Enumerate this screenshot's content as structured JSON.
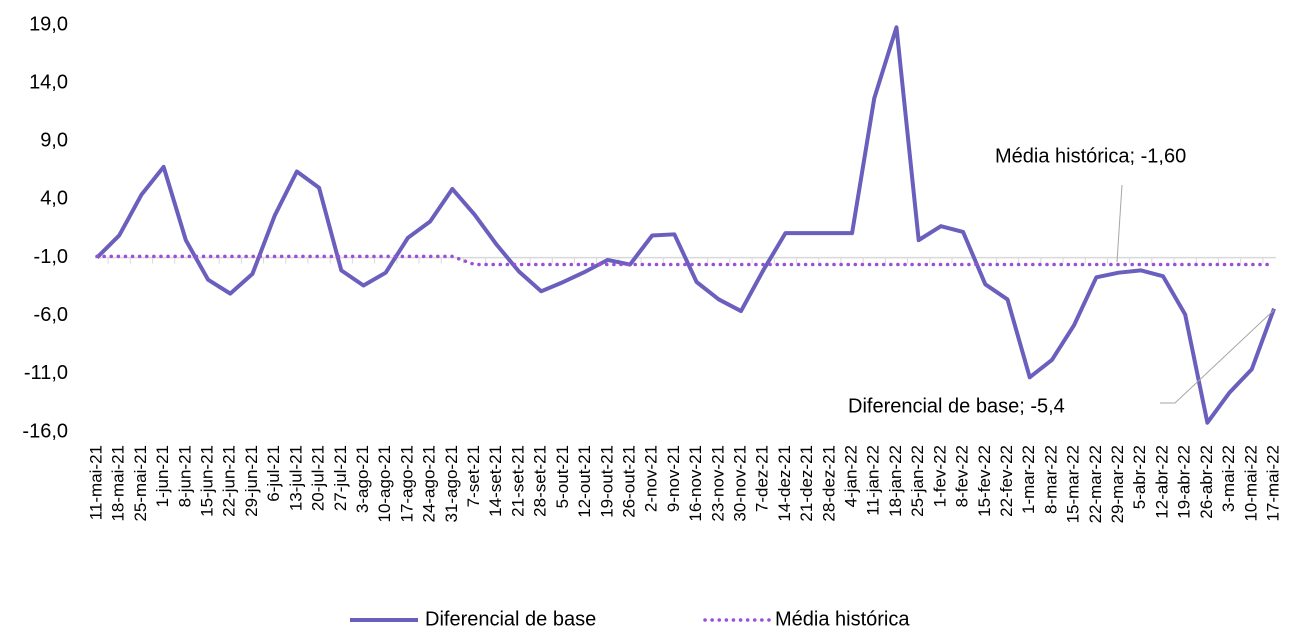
{
  "chart_data": {
    "type": "line",
    "categories": [
      "11-mai-21",
      "18-mai-21",
      "25-mai-21",
      "1-jun-21",
      "8-jun-21",
      "15-jun-21",
      "22-jun-21",
      "29-jun-21",
      "6-jul-21",
      "13-jul-21",
      "20-jul-21",
      "27-jul-21",
      "3-ago-21",
      "10-ago-21",
      "17-ago-21",
      "24-ago-21",
      "31-ago-21",
      "7-set-21",
      "14-set-21",
      "21-set-21",
      "28-set-21",
      "5-out-21",
      "12-out-21",
      "19-out-21",
      "26-out-21",
      "2-nov-21",
      "9-nov-21",
      "16-nov-21",
      "23-nov-21",
      "30-nov-21",
      "7-dez-21",
      "14-dez-21",
      "21-dez-21",
      "28-dez-21",
      "4-jan-22",
      "11-jan-22",
      "18-jan-22",
      "25-jan-22",
      "1-fev-22",
      "8-fev-22",
      "15-fev-22",
      "22-fev-22",
      "1-mar-22",
      "8-mar-22",
      "15-mar-22",
      "22-mar-22",
      "29-mar-22",
      "5-abr-22",
      "12-abr-22",
      "19-abr-22",
      "26-abr-22",
      "3-mai-22",
      "10-mai-22",
      "17-mai-22"
    ],
    "series": [
      {
        "name": "Diferencial de base",
        "color": "#6a5fbd",
        "dash": "solid",
        "values": [
          -1.0,
          0.9,
          4.4,
          6.8,
          0.5,
          -2.9,
          -4.1,
          -2.4,
          2.6,
          6.4,
          5.0,
          -2.1,
          -3.4,
          -2.3,
          0.7,
          2.1,
          4.9,
          2.7,
          0.1,
          -2.2,
          -3.9,
          -3.1,
          -2.2,
          -1.2,
          -1.6,
          0.9,
          1.0,
          -3.1,
          -4.6,
          -5.6,
          -2.1,
          1.1,
          1.1,
          1.1,
          1.1,
          12.7,
          18.8,
          0.5,
          1.7,
          1.2,
          -3.3,
          -4.6,
          -11.3,
          -9.8,
          -6.8,
          -2.7,
          -2.3,
          -2.1,
          -2.6,
          -5.9,
          -15.2,
          -12.6,
          -10.6,
          -5.4
        ]
      },
      {
        "name": "Média histórica",
        "color": "#9b4fd6",
        "dash": "dotted",
        "values": [
          -0.9,
          -0.9,
          -0.9,
          -0.9,
          -0.9,
          -0.9,
          -0.9,
          -0.9,
          -0.9,
          -0.9,
          -0.9,
          -0.9,
          -0.9,
          -0.9,
          -0.9,
          -0.9,
          -0.9,
          -1.6,
          -1.6,
          -1.6,
          -1.6,
          -1.6,
          -1.6,
          -1.6,
          -1.6,
          -1.6,
          -1.6,
          -1.6,
          -1.6,
          -1.6,
          -1.6,
          -1.6,
          -1.6,
          -1.6,
          -1.6,
          -1.6,
          -1.6,
          -1.6,
          -1.6,
          -1.6,
          -1.6,
          -1.6,
          -1.6,
          -1.6,
          -1.6,
          -1.6,
          -1.6,
          -1.6,
          -1.6,
          -1.6,
          -1.6,
          -1.6,
          -1.6,
          -1.6
        ]
      }
    ],
    "ylim": [
      -16,
      19
    ],
    "yticks": [
      {
        "value": -16,
        "label": "-16,0"
      },
      {
        "value": -11,
        "label": "-11,0"
      },
      {
        "value": -6,
        "label": "-6,0"
      },
      {
        "value": -1,
        "label": "-1,0"
      },
      {
        "value": 4,
        "label": "4,0"
      },
      {
        "value": 9,
        "label": "9,0"
      },
      {
        "value": 14,
        "label": "14,0"
      },
      {
        "value": 19,
        "label": "19,0"
      }
    ],
    "grid": false,
    "legend": "bottom",
    "annotations": [
      "Média histórica; -1,60",
      "Diferencial de base; -5,4"
    ]
  }
}
